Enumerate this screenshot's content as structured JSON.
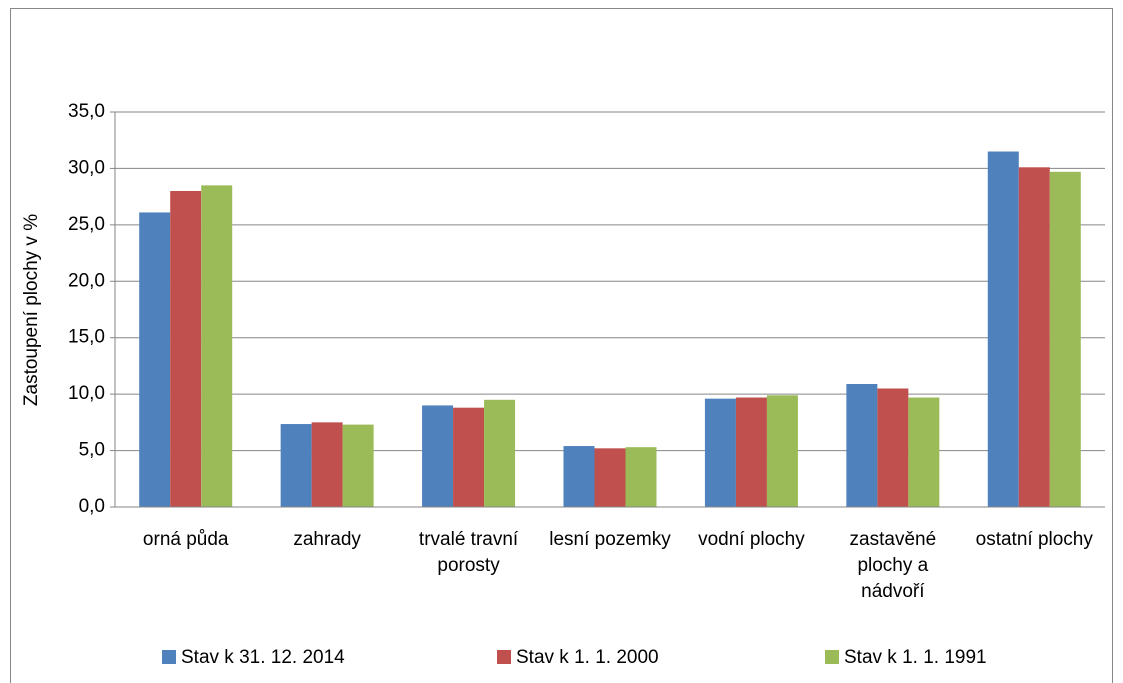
{
  "chart_data": {
    "type": "bar",
    "y_label": "Zastoupení plochy v %",
    "categories": [
      "orná půda",
      "zahrady",
      "trvalé travní porosty",
      "lesní pozemky",
      "vodní plochy",
      "zastavěné plochy a nádvoří",
      "ostatní plochy"
    ],
    "series": [
      {
        "name": "Stav k 31. 12. 2014",
        "color": "#4f81bd",
        "values": [
          26.1,
          7.35,
          9.0,
          5.4,
          9.6,
          10.9,
          31.5
        ]
      },
      {
        "name": "Stav k 1. 1. 2000",
        "color": "#c0504d",
        "values": [
          28.0,
          7.5,
          8.8,
          5.2,
          9.7,
          10.5,
          30.1
        ]
      },
      {
        "name": "Stav k 1. 1. 1991",
        "color": "#9bbb59",
        "values": [
          28.5,
          7.3,
          9.5,
          5.3,
          9.9,
          9.7,
          29.7
        ]
      }
    ],
    "ylim": [
      0,
      35
    ],
    "yticks": [
      {
        "value": 0,
        "label": "0,0"
      },
      {
        "value": 5,
        "label": "5,0"
      },
      {
        "value": 10,
        "label": "10,0"
      },
      {
        "value": 15,
        "label": "15,0"
      },
      {
        "value": 20,
        "label": "20,0"
      },
      {
        "value": 25,
        "label": "25,0"
      },
      {
        "value": 30,
        "label": "30,0"
      },
      {
        "value": 35,
        "label": "35,0"
      }
    ],
    "grid": true,
    "legend": "bottom"
  }
}
